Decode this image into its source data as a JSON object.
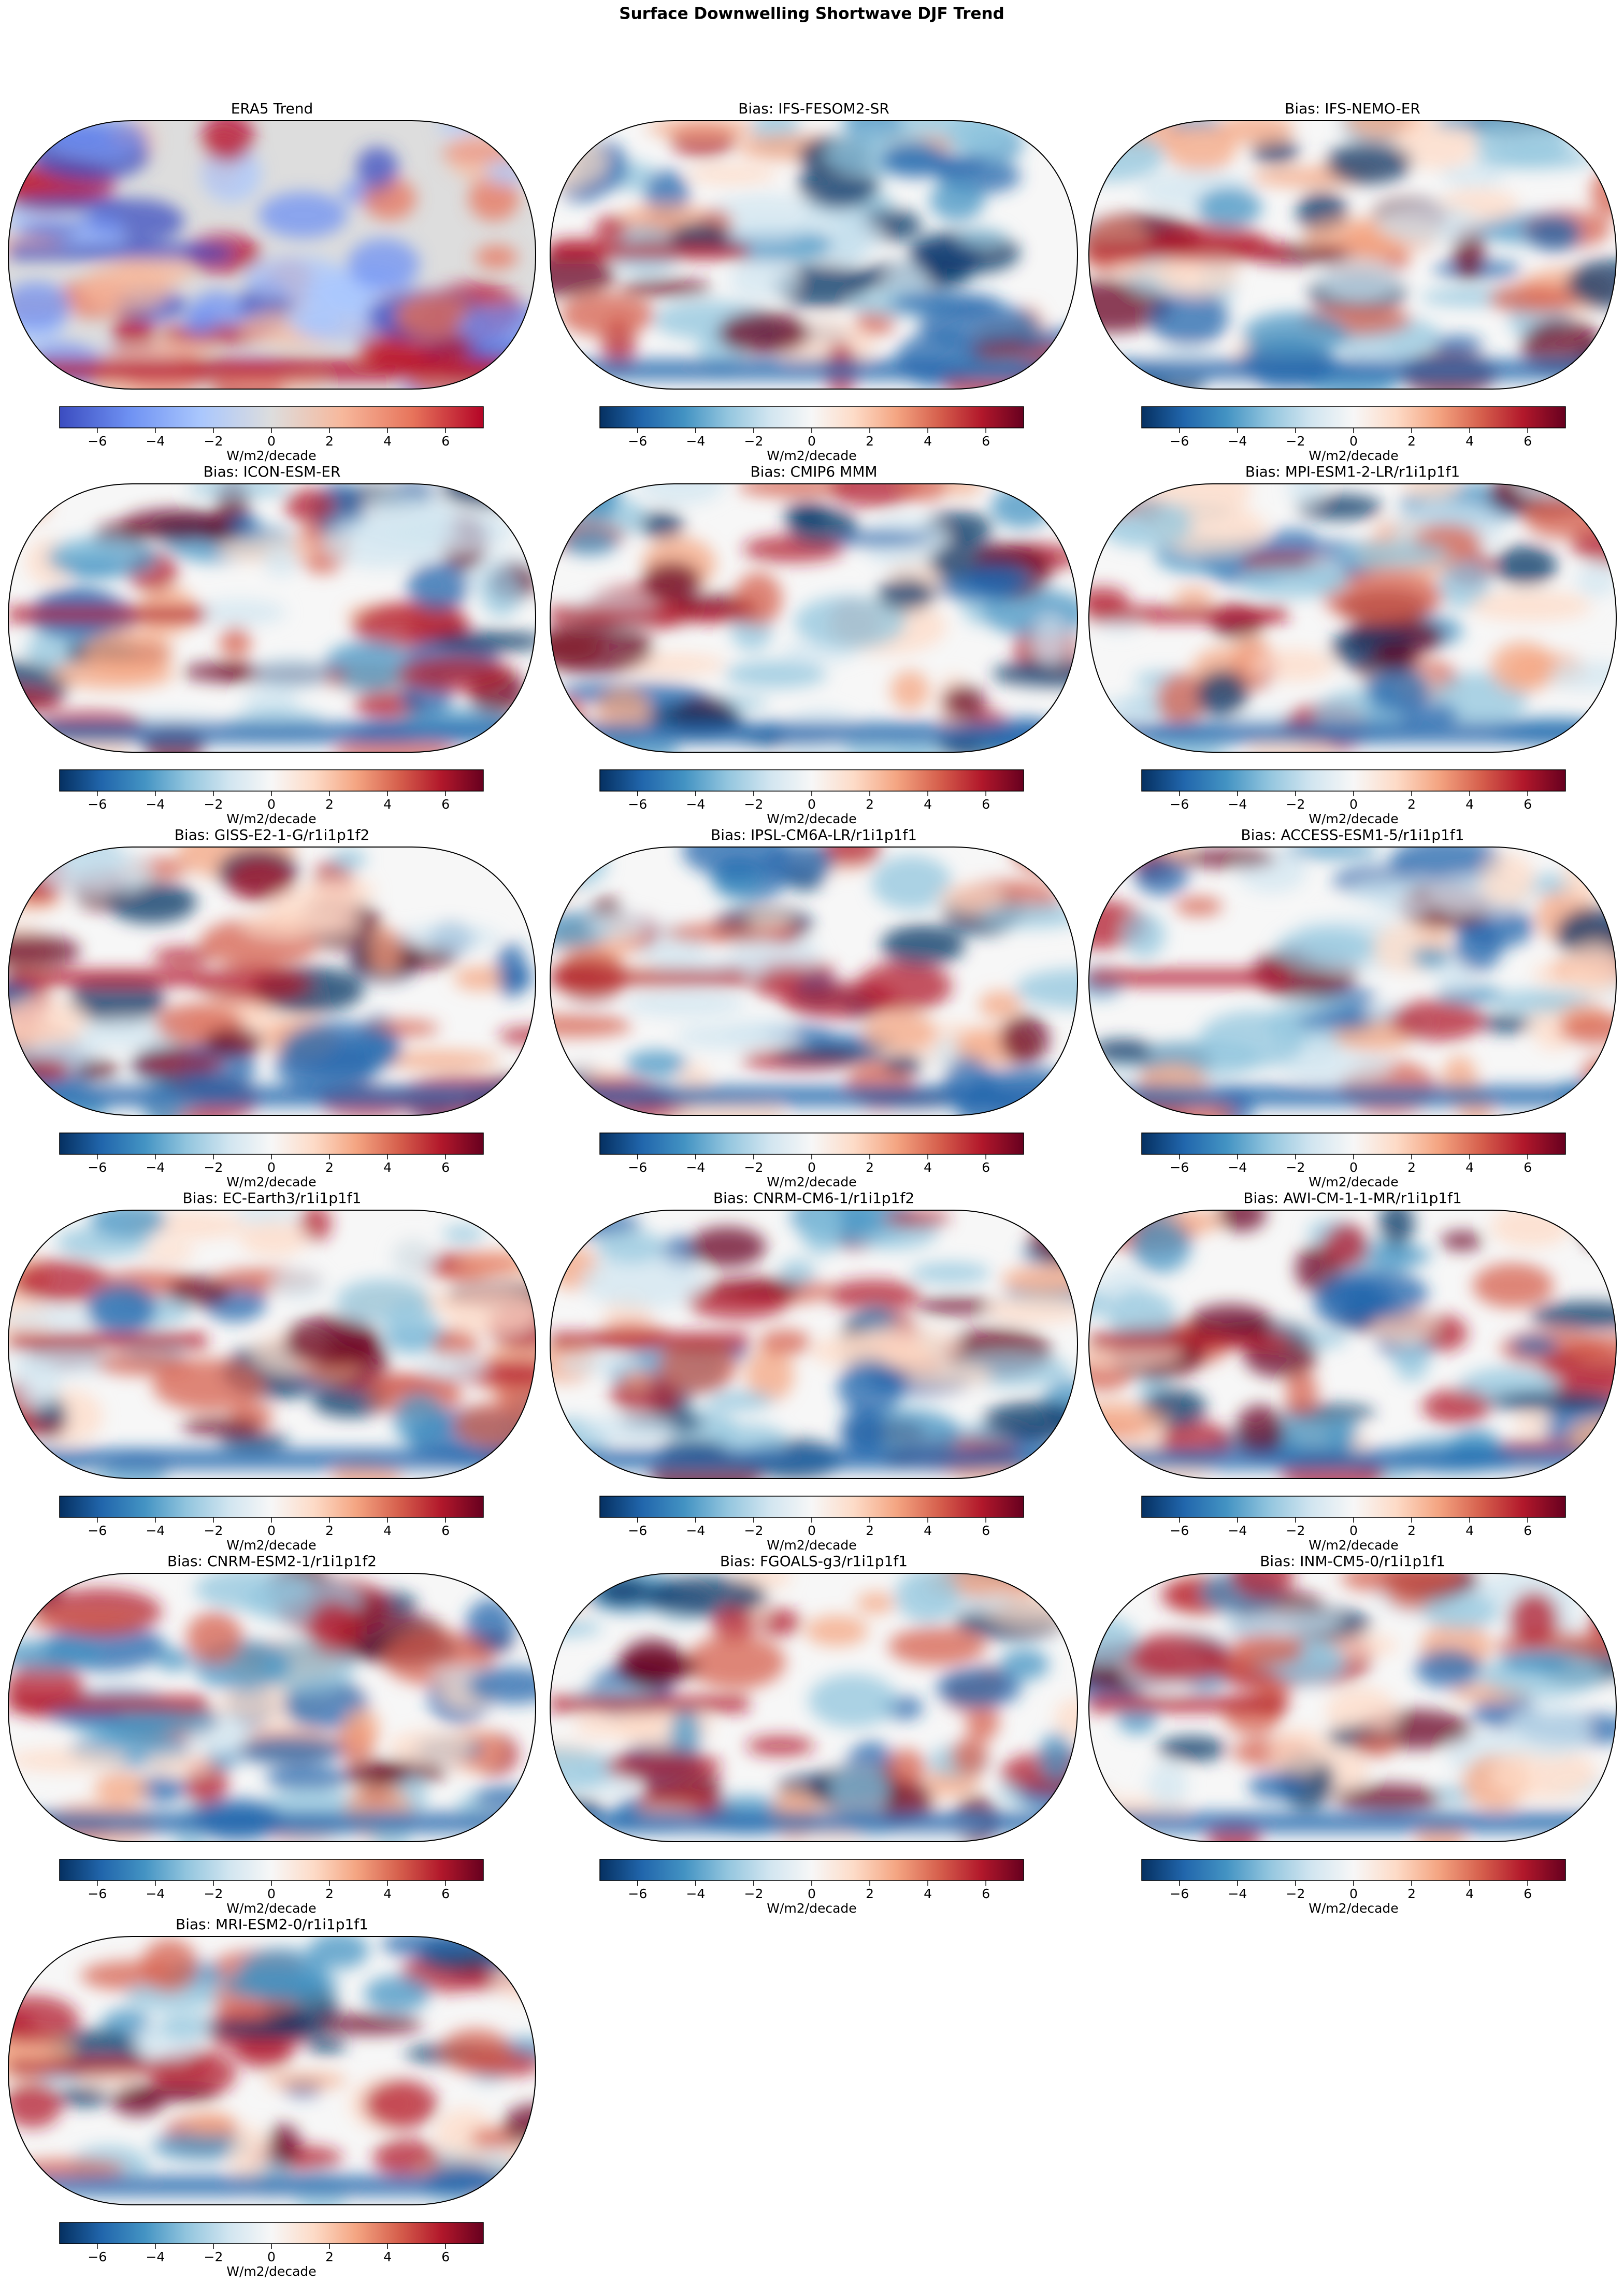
{
  "title": "Surface Downwelling Shortwave DJF Trend",
  "panels": [
    {
      "title": "ERA5 Trend",
      "colorbar": {
        "label": "W/m2/decade",
        "lim": [
          -7.3,
          7.3
        ],
        "ticks": [
          {
            "value": -6,
            "label": "−6"
          },
          {
            "value": -4,
            "label": "−4"
          },
          {
            "value": -2,
            "label": "−2"
          },
          0,
          2,
          4,
          6
        ],
        "colors": [
          "#3b4cc0",
          "#6f92f3",
          "#aac7fd",
          "#dddddd",
          "#f7b89c",
          "#e7745b",
          "#b40426"
        ]
      }
    },
    {
      "title": "Bias: IFS-FESOM2-SR",
      "colorbar": {
        "label": "W/m2/decade",
        "lim": [
          -7.3,
          7.3
        ],
        "ticks": [
          {
            "value": -6,
            "label": "−6"
          },
          {
            "value": -4,
            "label": "−4"
          },
          {
            "value": -2,
            "label": "−2"
          },
          0,
          2,
          4,
          6
        ],
        "colors": [
          "#053061",
          "#2166ac",
          "#4393c3",
          "#92c5de",
          "#d1e5f0",
          "#f7f7f7",
          "#fddbc7",
          "#f4a582",
          "#d6604d",
          "#b2182b",
          "#67001f"
        ]
      }
    },
    {
      "title": "Bias: IFS-NEMO-ER",
      "colorbar": {
        "label": "W/m2/decade",
        "lim": [
          -7.3,
          7.3
        ],
        "ticks": [
          {
            "value": -6,
            "label": "−6"
          },
          {
            "value": -4,
            "label": "−4"
          },
          {
            "value": -2,
            "label": "−2"
          },
          0,
          2,
          4,
          6
        ],
        "colors": [
          "#053061",
          "#2166ac",
          "#4393c3",
          "#92c5de",
          "#d1e5f0",
          "#f7f7f7",
          "#fddbc7",
          "#f4a582",
          "#d6604d",
          "#b2182b",
          "#67001f"
        ]
      }
    },
    {
      "title": "Bias: ICON-ESM-ER",
      "colorbar": {
        "label": "W/m2/decade",
        "lim": [
          -7.3,
          7.3
        ],
        "ticks": [
          {
            "value": -6,
            "label": "−6"
          },
          {
            "value": -4,
            "label": "−4"
          },
          {
            "value": -2,
            "label": "−2"
          },
          0,
          2,
          4,
          6
        ],
        "colors": [
          "#053061",
          "#2166ac",
          "#4393c3",
          "#92c5de",
          "#d1e5f0",
          "#f7f7f7",
          "#fddbc7",
          "#f4a582",
          "#d6604d",
          "#b2182b",
          "#67001f"
        ]
      }
    },
    {
      "title": "Bias: CMIP6 MMM",
      "colorbar": {
        "label": "W/m2/decade",
        "lim": [
          -7.3,
          7.3
        ],
        "ticks": [
          {
            "value": -6,
            "label": "−6"
          },
          {
            "value": -4,
            "label": "−4"
          },
          {
            "value": -2,
            "label": "−2"
          },
          0,
          2,
          4,
          6
        ],
        "colors": [
          "#053061",
          "#2166ac",
          "#4393c3",
          "#92c5de",
          "#d1e5f0",
          "#f7f7f7",
          "#fddbc7",
          "#f4a582",
          "#d6604d",
          "#b2182b",
          "#67001f"
        ]
      }
    },
    {
      "title": "Bias: MPI-ESM1-2-LR/r1i1p1f1",
      "colorbar": {
        "label": "W/m2/decade",
        "lim": [
          -7.3,
          7.3
        ],
        "ticks": [
          {
            "value": -6,
            "label": "−6"
          },
          {
            "value": -4,
            "label": "−4"
          },
          {
            "value": -2,
            "label": "−2"
          },
          0,
          2,
          4,
          6
        ],
        "colors": [
          "#053061",
          "#2166ac",
          "#4393c3",
          "#92c5de",
          "#d1e5f0",
          "#f7f7f7",
          "#fddbc7",
          "#f4a582",
          "#d6604d",
          "#b2182b",
          "#67001f"
        ]
      }
    },
    {
      "title": "Bias: GISS-E2-1-G/r1i1p1f2",
      "colorbar": {
        "label": "W/m2/decade",
        "lim": [
          -7.3,
          7.3
        ],
        "ticks": [
          {
            "value": -6,
            "label": "−6"
          },
          {
            "value": -4,
            "label": "−4"
          },
          {
            "value": -2,
            "label": "−2"
          },
          0,
          2,
          4,
          6
        ],
        "colors": [
          "#053061",
          "#2166ac",
          "#4393c3",
          "#92c5de",
          "#d1e5f0",
          "#f7f7f7",
          "#fddbc7",
          "#f4a582",
          "#d6604d",
          "#b2182b",
          "#67001f"
        ]
      }
    },
    {
      "title": "Bias: IPSL-CM6A-LR/r1i1p1f1",
      "colorbar": {
        "label": "W/m2/decade",
        "lim": [
          -7.3,
          7.3
        ],
        "ticks": [
          {
            "value": -6,
            "label": "−6"
          },
          {
            "value": -4,
            "label": "−4"
          },
          {
            "value": -2,
            "label": "−2"
          },
          0,
          2,
          4,
          6
        ],
        "colors": [
          "#053061",
          "#2166ac",
          "#4393c3",
          "#92c5de",
          "#d1e5f0",
          "#f7f7f7",
          "#fddbc7",
          "#f4a582",
          "#d6604d",
          "#b2182b",
          "#67001f"
        ]
      }
    },
    {
      "title": "Bias: ACCESS-ESM1-5/r1i1p1f1",
      "colorbar": {
        "label": "W/m2/decade",
        "lim": [
          -7.3,
          7.3
        ],
        "ticks": [
          {
            "value": -6,
            "label": "−6"
          },
          {
            "value": -4,
            "label": "−4"
          },
          {
            "value": -2,
            "label": "−2"
          },
          0,
          2,
          4,
          6
        ],
        "colors": [
          "#053061",
          "#2166ac",
          "#4393c3",
          "#92c5de",
          "#d1e5f0",
          "#f7f7f7",
          "#fddbc7",
          "#f4a582",
          "#d6604d",
          "#b2182b",
          "#67001f"
        ]
      }
    },
    {
      "title": "Bias: EC-Earth3/r1i1p1f1",
      "colorbar": {
        "label": "W/m2/decade",
        "lim": [
          -7.3,
          7.3
        ],
        "ticks": [
          {
            "value": -6,
            "label": "−6"
          },
          {
            "value": -4,
            "label": "−4"
          },
          {
            "value": -2,
            "label": "−2"
          },
          0,
          2,
          4,
          6
        ],
        "colors": [
          "#053061",
          "#2166ac",
          "#4393c3",
          "#92c5de",
          "#d1e5f0",
          "#f7f7f7",
          "#fddbc7",
          "#f4a582",
          "#d6604d",
          "#b2182b",
          "#67001f"
        ]
      }
    },
    {
      "title": "Bias: CNRM-CM6-1/r1i1p1f2",
      "colorbar": {
        "label": "W/m2/decade",
        "lim": [
          -7.3,
          7.3
        ],
        "ticks": [
          {
            "value": -6,
            "label": "−6"
          },
          {
            "value": -4,
            "label": "−4"
          },
          {
            "value": -2,
            "label": "−2"
          },
          0,
          2,
          4,
          6
        ],
        "colors": [
          "#053061",
          "#2166ac",
          "#4393c3",
          "#92c5de",
          "#d1e5f0",
          "#f7f7f7",
          "#fddbc7",
          "#f4a582",
          "#d6604d",
          "#b2182b",
          "#67001f"
        ]
      }
    },
    {
      "title": "Bias: AWI-CM-1-1-MR/r1i1p1f1",
      "colorbar": {
        "label": "W/m2/decade",
        "lim": [
          -7.3,
          7.3
        ],
        "ticks": [
          {
            "value": -6,
            "label": "−6"
          },
          {
            "value": -4,
            "label": "−4"
          },
          {
            "value": -2,
            "label": "−2"
          },
          0,
          2,
          4,
          6
        ],
        "colors": [
          "#053061",
          "#2166ac",
          "#4393c3",
          "#92c5de",
          "#d1e5f0",
          "#f7f7f7",
          "#fddbc7",
          "#f4a582",
          "#d6604d",
          "#b2182b",
          "#67001f"
        ]
      }
    },
    {
      "title": "Bias: CNRM-ESM2-1/r1i1p1f2",
      "colorbar": {
        "label": "W/m2/decade",
        "lim": [
          -7.3,
          7.3
        ],
        "ticks": [
          {
            "value": -6,
            "label": "−6"
          },
          {
            "value": -4,
            "label": "−4"
          },
          {
            "value": -2,
            "label": "−2"
          },
          0,
          2,
          4,
          6
        ],
        "colors": [
          "#053061",
          "#2166ac",
          "#4393c3",
          "#92c5de",
          "#d1e5f0",
          "#f7f7f7",
          "#fddbc7",
          "#f4a582",
          "#d6604d",
          "#b2182b",
          "#67001f"
        ]
      }
    },
    {
      "title": "Bias: FGOALS-g3/r1i1p1f1",
      "colorbar": {
        "label": "W/m2/decade",
        "lim": [
          -7.3,
          7.3
        ],
        "ticks": [
          {
            "value": -6,
            "label": "−6"
          },
          {
            "value": -4,
            "label": "−4"
          },
          {
            "value": -2,
            "label": "−2"
          },
          0,
          2,
          4,
          6
        ],
        "colors": [
          "#053061",
          "#2166ac",
          "#4393c3",
          "#92c5de",
          "#d1e5f0",
          "#f7f7f7",
          "#fddbc7",
          "#f4a582",
          "#d6604d",
          "#b2182b",
          "#67001f"
        ]
      }
    },
    {
      "title": "Bias: INM-CM5-0/r1i1p1f1",
      "colorbar": {
        "label": "W/m2/decade",
        "lim": [
          -7.3,
          7.3
        ],
        "ticks": [
          {
            "value": -6,
            "label": "−6"
          },
          {
            "value": -4,
            "label": "−4"
          },
          {
            "value": -2,
            "label": "−2"
          },
          0,
          2,
          4,
          6
        ],
        "colors": [
          "#053061",
          "#2166ac",
          "#4393c3",
          "#92c5de",
          "#d1e5f0",
          "#f7f7f7",
          "#fddbc7",
          "#f4a582",
          "#d6604d",
          "#b2182b",
          "#67001f"
        ]
      }
    },
    {
      "title": "Bias: MRI-ESM2-0/r1i1p1f1",
      "colorbar": {
        "label": "W/m2/decade",
        "lim": [
          -7.3,
          7.3
        ],
        "ticks": [
          {
            "value": -6,
            "label": "−6"
          },
          {
            "value": -4,
            "label": "−4"
          },
          {
            "value": -2,
            "label": "−2"
          },
          0,
          2,
          4,
          6
        ],
        "colors": [
          "#053061",
          "#2166ac",
          "#4393c3",
          "#92c5de",
          "#d1e5f0",
          "#f7f7f7",
          "#fddbc7",
          "#f4a582",
          "#d6604d",
          "#b2182b",
          "#67001f"
        ]
      }
    }
  ]
}
